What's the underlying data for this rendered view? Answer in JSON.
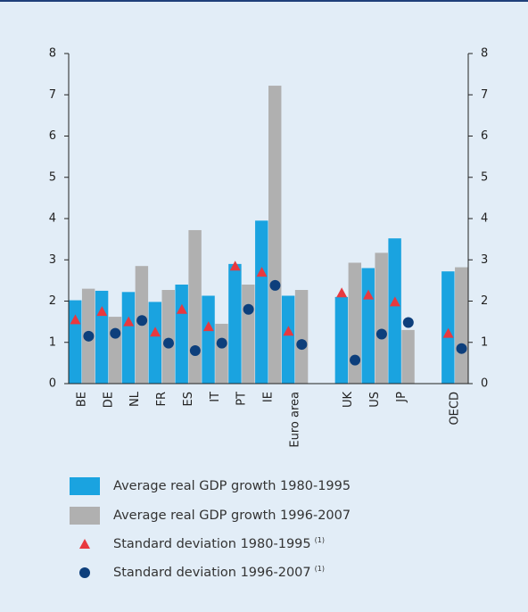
{
  "chart_data": {
    "type": "bar",
    "categories": [
      "BE",
      "DE",
      "NL",
      "FR",
      "ES",
      "IT",
      "PT",
      "IE",
      "Euro area",
      null,
      "UK",
      "US",
      "JP",
      null,
      "OECD"
    ],
    "series": [
      {
        "name": "Average real GDP growth 1980-1995",
        "color": "#1aa3e0",
        "marker": "bar",
        "values": [
          2.02,
          2.25,
          2.22,
          1.98,
          2.4,
          2.13,
          2.9,
          3.95,
          2.13,
          null,
          2.1,
          2.8,
          3.52,
          null,
          2.72
        ]
      },
      {
        "name": "Average real GDP growth 1996-2007",
        "color": "#b0b0b0",
        "marker": "bar",
        "values": [
          2.3,
          1.62,
          2.85,
          2.27,
          3.72,
          1.45,
          2.4,
          7.22,
          2.27,
          null,
          2.93,
          3.17,
          1.3,
          null,
          2.82
        ]
      },
      {
        "name": "Standard deviation 1980-1995",
        "note": "(1)",
        "color": "#e8393f",
        "marker": "triangle",
        "values": [
          1.55,
          1.75,
          1.5,
          1.25,
          1.8,
          1.38,
          2.85,
          2.7,
          1.27,
          null,
          2.2,
          2.15,
          1.98,
          null,
          1.22
        ]
      },
      {
        "name": "Standard deviation 1996-2007",
        "note": "(1)",
        "color": "#0d3f7c",
        "marker": "circle",
        "values": [
          1.15,
          1.22,
          1.53,
          0.98,
          0.8,
          0.98,
          1.8,
          2.38,
          0.95,
          null,
          0.57,
          1.2,
          1.48,
          null,
          0.85
        ]
      }
    ],
    "ylim": [
      0,
      8
    ],
    "yticks": [
      0,
      1,
      2,
      3,
      4,
      5,
      6,
      7,
      8
    ],
    "y2lim": [
      0,
      8
    ],
    "y2ticks": [
      0,
      1,
      2,
      3,
      4,
      5,
      6,
      7,
      8
    ]
  }
}
